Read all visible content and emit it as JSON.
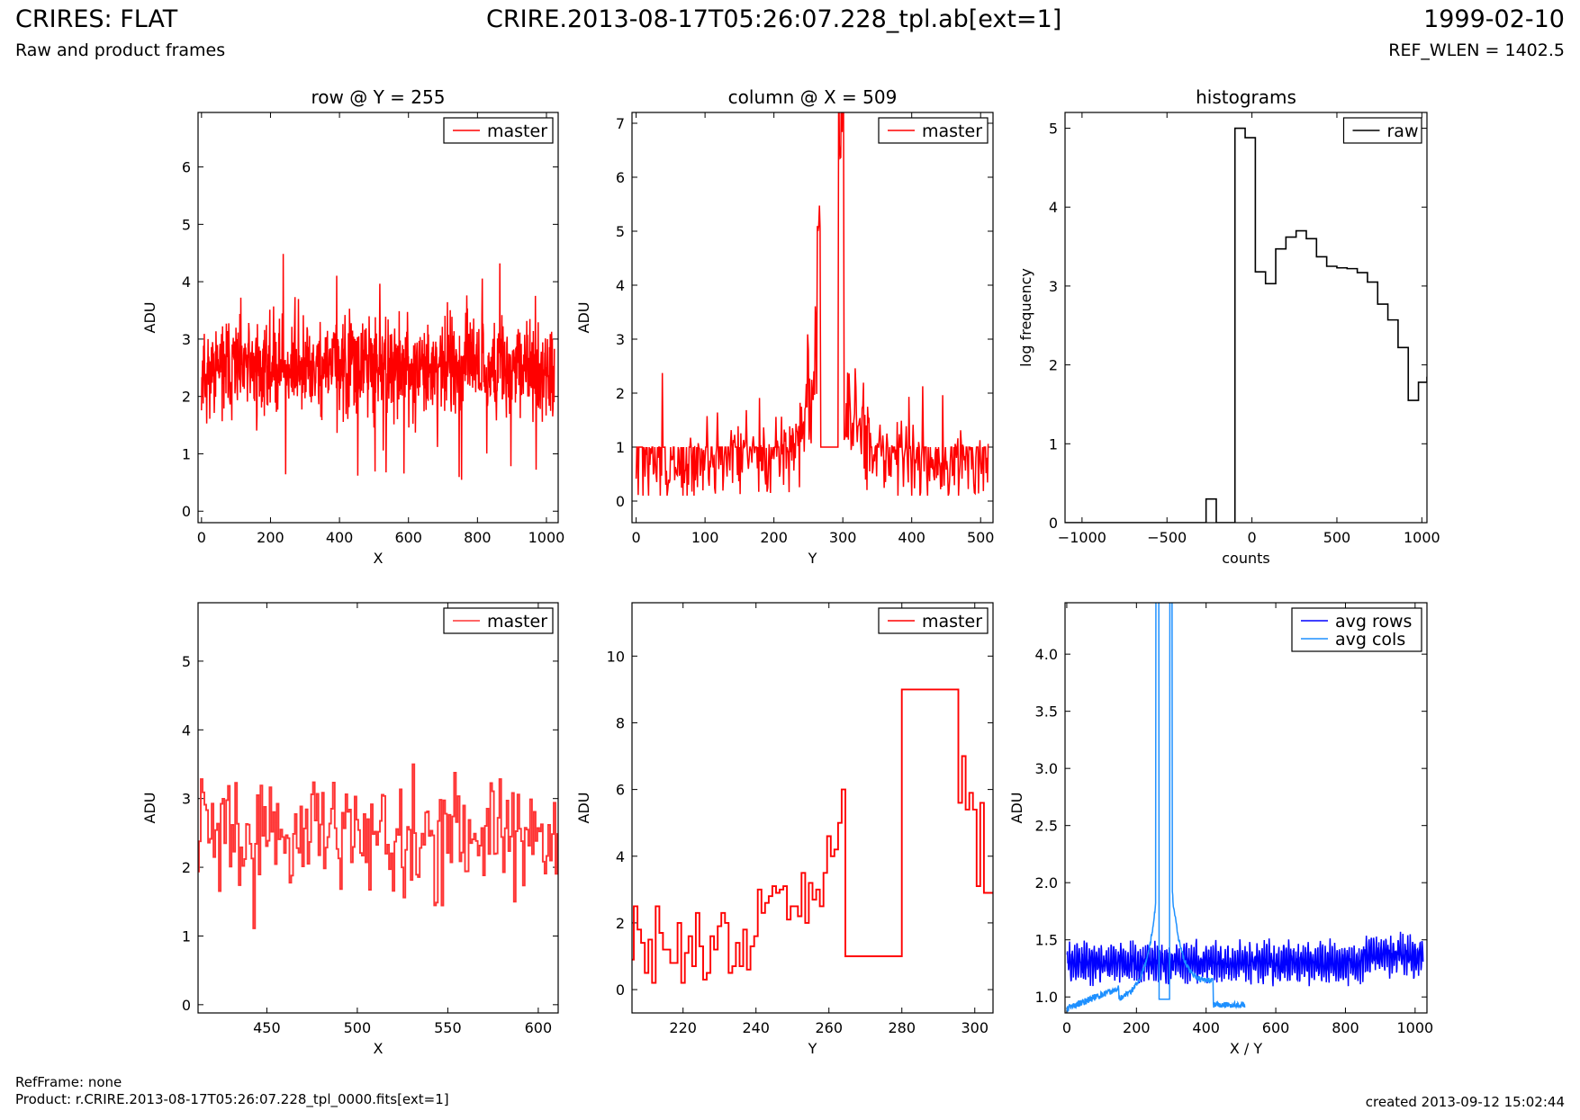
{
  "header": {
    "title_left": "CRIRES: FLAT",
    "subtitle_left": "Raw and product frames",
    "title_center": "CRIRE.2013-08-17T05:26:07.228_tpl.ab[ext=1]",
    "title_right": "1999-02-10",
    "subtitle_right": "REF_WLEN = 1402.5"
  },
  "footer": {
    "ref_frame": "RefFrame: none",
    "product": "Product: r.CRIRE.2013-08-17T05:26:07.228_tpl_0000.fits[ext=1]",
    "created": "created 2013-09-12 15:02:44"
  },
  "chart_data": [
    {
      "id": "row-full",
      "type": "line",
      "title": "row @ Y = 255",
      "xlabel": "X",
      "ylabel": "ADU",
      "xlim": [
        -10,
        1034
      ],
      "ylim": [
        -0.2,
        6.95
      ],
      "xticks": [
        0,
        200,
        400,
        600,
        800,
        1000
      ],
      "yticks": [
        0,
        1,
        2,
        3,
        4,
        5,
        6
      ],
      "legend": "top-right",
      "series": [
        {
          "name": "master",
          "color": "#ff0000",
          "style": "noise",
          "x_range": [
            0,
            1023
          ],
          "n": 1024,
          "seed": 11,
          "baseline": 2.5,
          "spread": 0.75,
          "min": 0.3,
          "max": 5.4
        }
      ]
    },
    {
      "id": "column-full",
      "type": "line",
      "title": "column @ X = 509",
      "xlabel": "Y",
      "ylabel": "ADU",
      "xlim": [
        -6,
        518
      ],
      "ylim": [
        -0.4,
        7.2
      ],
      "xticks": [
        0,
        100,
        200,
        300,
        400,
        500
      ],
      "yticks": [
        0,
        1,
        2,
        3,
        4,
        5,
        6,
        7
      ],
      "legend": "top-right",
      "series": [
        {
          "name": "master",
          "color": "#ff0000",
          "style": "column-profile",
          "x_range": [
            0,
            511
          ],
          "n": 512,
          "seed": 23,
          "gap": [
            265,
            295
          ],
          "gap_value": 1,
          "peak": 8.8
        }
      ]
    },
    {
      "id": "histogram",
      "type": "histogram",
      "title": "histograms",
      "xlabel": "counts",
      "ylabel": "log frequency",
      "xlim": [
        -1100,
        1030
      ],
      "ylim": [
        0,
        5.2
      ],
      "xticks": [
        -1000,
        -500,
        0,
        500,
        1000
      ],
      "xtick_labels": [
        "−1000",
        "−500",
        "0",
        "500",
        "1000"
      ],
      "yticks": [
        0,
        1,
        2,
        3,
        4,
        5
      ],
      "legend": "top-right",
      "series": [
        {
          "name": "raw",
          "color": "#000000",
          "edges": [
            -1100,
            -270,
            -210,
            -100,
            -40,
            20,
            80,
            140,
            200,
            260,
            320,
            380,
            440,
            500,
            560,
            620,
            680,
            740,
            800,
            860,
            920,
            980,
            1030
          ],
          "values": [
            0,
            0.3,
            0,
            5.0,
            4.88,
            3.18,
            3.03,
            3.47,
            3.62,
            3.7,
            3.6,
            3.37,
            3.25,
            3.23,
            3.22,
            3.17,
            3.05,
            2.77,
            2.57,
            2.22,
            1.55,
            1.78,
            1.85
          ]
        }
      ]
    },
    {
      "id": "row-zoom",
      "type": "line",
      "title": "",
      "xlabel": "X",
      "ylabel": "ADU",
      "xlim": [
        412,
        611
      ],
      "ylim": [
        -0.12,
        5.85
      ],
      "xticks": [
        450,
        500,
        550,
        600
      ],
      "yticks": [
        0,
        1,
        2,
        3,
        4,
        5
      ],
      "legend": "top-right",
      "series": [
        {
          "name": "master",
          "color": "#ff3333",
          "style": "steps",
          "x_range": [
            412,
            611
          ],
          "n": 200,
          "seed": 31,
          "baseline": 2.5,
          "spread": 0.75,
          "min": 0.3,
          "max": 4.6
        }
      ]
    },
    {
      "id": "column-zoom",
      "type": "line",
      "title": "",
      "xlabel": "Y",
      "ylabel": "ADU",
      "xlim": [
        206,
        305
      ],
      "ylim": [
        -0.7,
        11.6
      ],
      "xticks": [
        220,
        240,
        260,
        280,
        300
      ],
      "yticks": [
        0,
        2,
        4,
        6,
        8,
        10
      ],
      "legend": "top-right",
      "series": [
        {
          "name": "master",
          "color": "#ff0000",
          "style": "steps",
          "points": [
            [
              206,
              0.9
            ],
            [
              207,
              2.5
            ],
            [
              208,
              1.8
            ],
            [
              209,
              1.4
            ],
            [
              210,
              0.5
            ],
            [
              211,
              1.5
            ],
            [
              212,
              0.2
            ],
            [
              213,
              2.5
            ],
            [
              214,
              1.7
            ],
            [
              215,
              1.2
            ],
            [
              216,
              1.2
            ],
            [
              217,
              0.8
            ],
            [
              218,
              0.8
            ],
            [
              219,
              2.0
            ],
            [
              220,
              0.2
            ],
            [
              221,
              1.1
            ],
            [
              222,
              1.6
            ],
            [
              223,
              0.7
            ],
            [
              224,
              2.3
            ],
            [
              225,
              1.3
            ],
            [
              226,
              0.3
            ],
            [
              227,
              0.5
            ],
            [
              228,
              1.6
            ],
            [
              229,
              1.2
            ],
            [
              230,
              1.9
            ],
            [
              231,
              2.3
            ],
            [
              232,
              2.0
            ],
            [
              233,
              0.5
            ],
            [
              234,
              0.7
            ],
            [
              235,
              1.4
            ],
            [
              236,
              0.7
            ],
            [
              237,
              1.8
            ],
            [
              238,
              0.6
            ],
            [
              239,
              1.3
            ],
            [
              240,
              1.6
            ],
            [
              241,
              3.0
            ],
            [
              242,
              2.3
            ],
            [
              243,
              2.6
            ],
            [
              244,
              2.8
            ],
            [
              245,
              3.1
            ],
            [
              246,
              2.9
            ],
            [
              247,
              3.0
            ],
            [
              248,
              3.1
            ],
            [
              249,
              2.1
            ],
            [
              250,
              2.5
            ],
            [
              251,
              2.5
            ],
            [
              252,
              2.2
            ],
            [
              253,
              3.5
            ],
            [
              254,
              2.0
            ],
            [
              255,
              3.2
            ],
            [
              256,
              2.7
            ],
            [
              257,
              3.0
            ],
            [
              258,
              2.5
            ],
            [
              259,
              3.5
            ],
            [
              260,
              4.6
            ],
            [
              261,
              4.0
            ],
            [
              262,
              4.2
            ],
            [
              263,
              5.0
            ],
            [
              264,
              6.0
            ],
            [
              265,
              1.0
            ],
            [
              295,
              9.0
            ],
            [
              296,
              5.6
            ],
            [
              297,
              7.0
            ],
            [
              298,
              5.4
            ],
            [
              299,
              5.9
            ],
            [
              300,
              5.4
            ],
            [
              301,
              3.1
            ],
            [
              302,
              5.6
            ],
            [
              303,
              2.9
            ],
            [
              305,
              2.9
            ]
          ]
        }
      ]
    },
    {
      "id": "averages",
      "type": "line",
      "title": "",
      "xlabel": "X / Y",
      "ylabel": "ADU",
      "xlim": [
        -5,
        1034
      ],
      "ylim": [
        0.86,
        4.45
      ],
      "xticks": [
        0,
        200,
        400,
        600,
        800,
        1000
      ],
      "yticks": [
        1.0,
        1.5,
        2.0,
        2.5,
        3.0,
        3.5,
        4.0
      ],
      "ytick_labels": [
        "1.0",
        "1.5",
        "2.0",
        "2.5",
        "3.0",
        "3.5",
        "4.0"
      ],
      "legend": "top-right",
      "series": [
        {
          "name": "avg rows",
          "color": "#0000ff",
          "style": "avg-rows",
          "x_range": [
            0,
            1023
          ],
          "n": 1024,
          "seed": 41,
          "baseline": 1.3
        },
        {
          "name": "avg cols",
          "color": "#1e90ff",
          "style": "avg-cols",
          "x_range": [
            0,
            511
          ],
          "n": 512,
          "seed": 43,
          "gap": [
            265,
            295
          ],
          "gap_value": 0.98,
          "peak": 5.0
        }
      ]
    }
  ]
}
